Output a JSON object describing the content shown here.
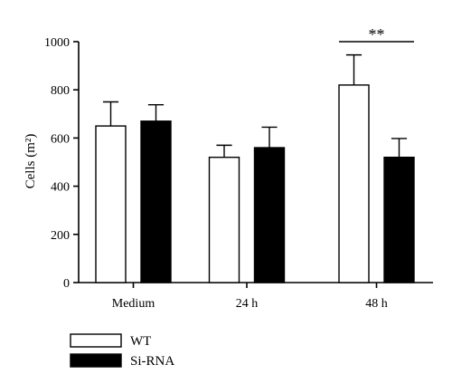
{
  "chart_data": {
    "type": "bar",
    "categories": [
      "Medium",
      "24 h",
      "48 h"
    ],
    "series": [
      {
        "name": "WT",
        "values": [
          650,
          520,
          820
        ],
        "errors": [
          100,
          50,
          125
        ],
        "color": "#ffffff"
      },
      {
        "name": "Si-RNA",
        "values": [
          670,
          560,
          520
        ],
        "errors": [
          68,
          85,
          78
        ],
        "color": "#000000"
      }
    ],
    "ylabel": "Cells (m²)",
    "ylim": [
      0,
      1000
    ],
    "yticks": [
      0,
      200,
      400,
      600,
      800,
      1000
    ],
    "grid": false,
    "legend_position": "bottom-left",
    "annotations": [
      {
        "text": "**",
        "category": "48 h",
        "bracket_value": 1000
      }
    ]
  }
}
